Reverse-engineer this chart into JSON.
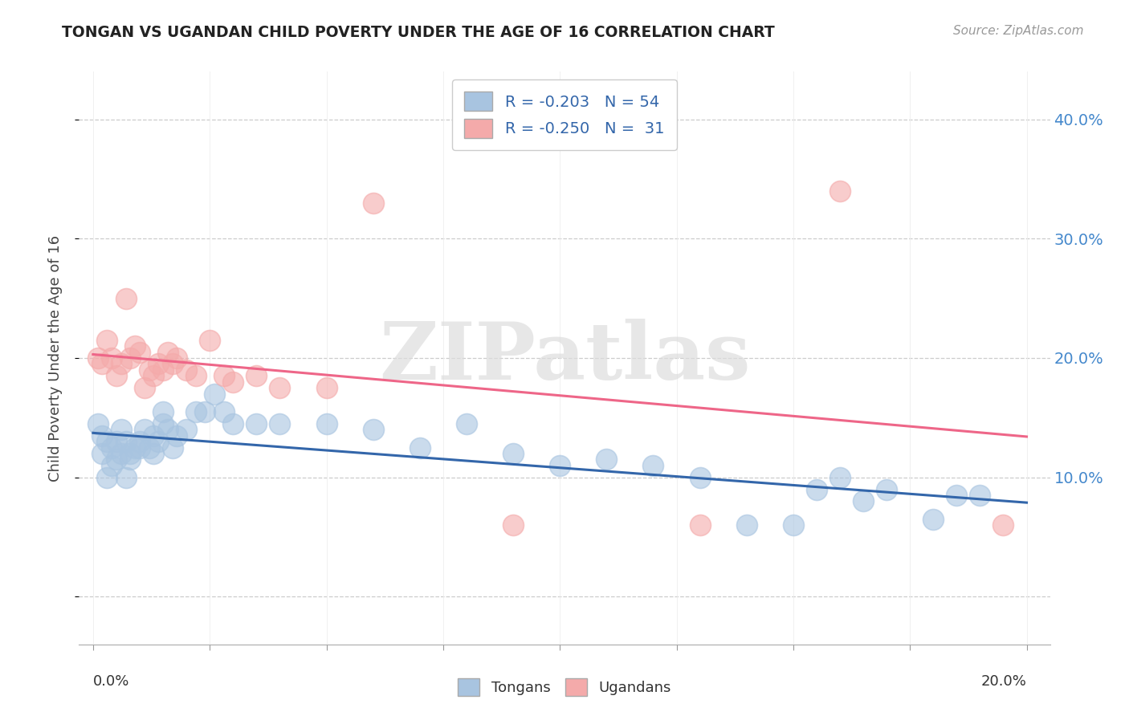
{
  "title": "TONGAN VS UGANDAN CHILD POVERTY UNDER THE AGE OF 16 CORRELATION CHART",
  "source": "Source: ZipAtlas.com",
  "ylabel": "Child Poverty Under the Age of 16",
  "y_ticks": [
    0.0,
    0.1,
    0.2,
    0.3,
    0.4
  ],
  "y_tick_labels": [
    "",
    "10.0%",
    "20.0%",
    "30.0%",
    "40.0%"
  ],
  "x_ticks": [
    0.0,
    0.025,
    0.05,
    0.075,
    0.1,
    0.125,
    0.15,
    0.175,
    0.2
  ],
  "xlim": [
    -0.003,
    0.205
  ],
  "ylim": [
    -0.04,
    0.44
  ],
  "blue_color": "#A8C4E0",
  "pink_color": "#F4AAAA",
  "blue_line_color": "#3366AA",
  "pink_line_color": "#EE6688",
  "background_color": "#FFFFFF",
  "tongans_x": [
    0.001,
    0.002,
    0.002,
    0.003,
    0.003,
    0.004,
    0.004,
    0.005,
    0.005,
    0.006,
    0.006,
    0.007,
    0.007,
    0.008,
    0.008,
    0.009,
    0.01,
    0.01,
    0.011,
    0.012,
    0.013,
    0.013,
    0.014,
    0.015,
    0.015,
    0.016,
    0.017,
    0.018,
    0.02,
    0.022,
    0.024,
    0.026,
    0.028,
    0.03,
    0.035,
    0.04,
    0.05,
    0.06,
    0.07,
    0.08,
    0.09,
    0.1,
    0.11,
    0.12,
    0.13,
    0.14,
    0.15,
    0.155,
    0.16,
    0.165,
    0.17,
    0.18,
    0.185,
    0.19
  ],
  "tongans_y": [
    0.145,
    0.135,
    0.12,
    0.1,
    0.13,
    0.11,
    0.125,
    0.115,
    0.13,
    0.12,
    0.14,
    0.1,
    0.13,
    0.115,
    0.12,
    0.125,
    0.13,
    0.125,
    0.14,
    0.125,
    0.135,
    0.12,
    0.13,
    0.145,
    0.155,
    0.14,
    0.125,
    0.135,
    0.14,
    0.155,
    0.155,
    0.17,
    0.155,
    0.145,
    0.145,
    0.145,
    0.145,
    0.14,
    0.125,
    0.145,
    0.12,
    0.11,
    0.115,
    0.11,
    0.1,
    0.06,
    0.06,
    0.09,
    0.1,
    0.08,
    0.09,
    0.065,
    0.085,
    0.085
  ],
  "ugandans_x": [
    0.001,
    0.002,
    0.003,
    0.004,
    0.005,
    0.006,
    0.007,
    0.008,
    0.009,
    0.01,
    0.011,
    0.012,
    0.013,
    0.014,
    0.015,
    0.016,
    0.017,
    0.018,
    0.02,
    0.022,
    0.025,
    0.028,
    0.03,
    0.035,
    0.04,
    0.05,
    0.06,
    0.09,
    0.13,
    0.16,
    0.195
  ],
  "ugandans_y": [
    0.2,
    0.195,
    0.215,
    0.2,
    0.185,
    0.195,
    0.25,
    0.2,
    0.21,
    0.205,
    0.175,
    0.19,
    0.185,
    0.195,
    0.19,
    0.205,
    0.195,
    0.2,
    0.19,
    0.185,
    0.215,
    0.185,
    0.18,
    0.185,
    0.175,
    0.175,
    0.33,
    0.06,
    0.06,
    0.34,
    0.06
  ]
}
